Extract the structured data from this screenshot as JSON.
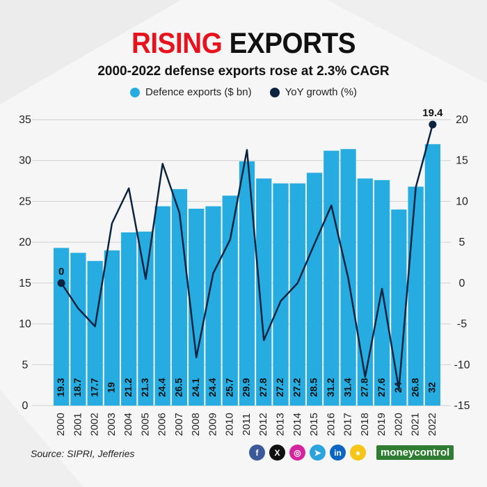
{
  "header": {
    "title_highlight": "RISING",
    "title_rest": "EXPORTS",
    "subtitle": "2000-2022 defense exports rose at 2.3% CAGR"
  },
  "legend": {
    "bars_label": "Defence exports ($ bn)",
    "line_label": "YoY growth (%)"
  },
  "colors": {
    "bar": "#26ace0",
    "line": "#0c2340",
    "title_accent": "#e8121c"
  },
  "chart_data": {
    "type": "bar",
    "categories": [
      "2000",
      "2001",
      "2002",
      "2003",
      "2004",
      "2005",
      "2006",
      "2007",
      "2008",
      "2009",
      "2010",
      "2011",
      "2012",
      "2013",
      "2014",
      "2015",
      "2016",
      "2017",
      "2018",
      "2019",
      "2020",
      "2021",
      "2022"
    ],
    "series": [
      {
        "name": "Defence exports ($ bn)",
        "type": "bar",
        "axis": "left",
        "values": [
          19.3,
          18.7,
          17.7,
          19,
          21.2,
          21.3,
          24.4,
          26.5,
          24.1,
          24.4,
          25.7,
          29.9,
          27.8,
          27.2,
          27.2,
          28.5,
          31.2,
          31.4,
          27.8,
          27.6,
          24,
          26.8,
          32
        ],
        "data_labels": [
          "19.3",
          "18.7",
          "17.7",
          "19",
          "21.2",
          "21.3",
          "24.4",
          "26.5",
          "24.1",
          "24.4",
          "25.7",
          "29.9",
          "27.8",
          "27.2",
          "27.2",
          "28.5",
          "31.2",
          "31.4",
          "27.8",
          "27.6",
          "24",
          "26.8",
          "32"
        ]
      },
      {
        "name": "YoY growth (%)",
        "type": "line",
        "axis": "right",
        "values": [
          0,
          -3.1,
          -5.3,
          7.3,
          11.6,
          0.5,
          14.6,
          8.6,
          -9.1,
          1.2,
          5.3,
          16.3,
          -7.0,
          -2.2,
          0.0,
          4.8,
          9.5,
          0.6,
          -11.5,
          -0.7,
          -13.0,
          11.7,
          19.4
        ]
      }
    ],
    "point_labels": [
      {
        "index": 0,
        "text": "0"
      },
      {
        "index": 22,
        "text": "19.4"
      }
    ],
    "ylim_left": [
      0,
      35
    ],
    "yticks_left": [
      0,
      5,
      10,
      15,
      20,
      25,
      30,
      35
    ],
    "ylim_right": [
      -15,
      20
    ],
    "yticks_right": [
      -15,
      -10,
      -5,
      0,
      5,
      10,
      15,
      20
    ],
    "grid": true,
    "legend_position": "top"
  },
  "footer": {
    "source": "Source: SIPRI, Jefferies",
    "brand": "moneycontrol",
    "social": [
      {
        "icon": "facebook-icon",
        "glyph": "f",
        "color": "#3b5998"
      },
      {
        "icon": "x-icon",
        "glyph": "X",
        "color": "#111111"
      },
      {
        "icon": "instagram-icon",
        "glyph": "◎",
        "color": "#d6249f"
      },
      {
        "icon": "telegram-icon",
        "glyph": "➤",
        "color": "#2aa3df"
      },
      {
        "icon": "linkedin-icon",
        "glyph": "in",
        "color": "#0a66c2"
      },
      {
        "icon": "koo-icon",
        "glyph": "●",
        "color": "#f5c518"
      }
    ]
  }
}
